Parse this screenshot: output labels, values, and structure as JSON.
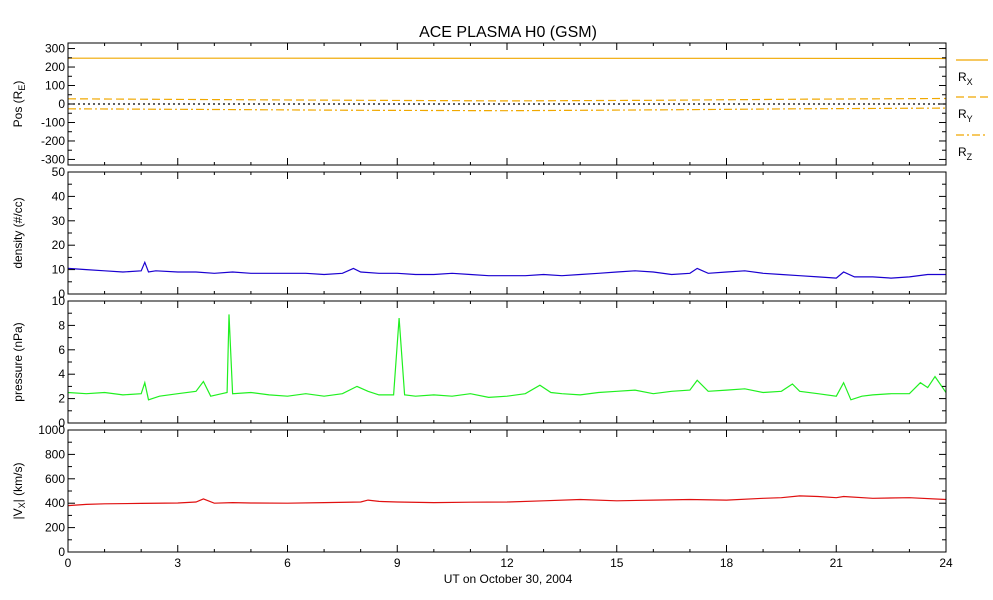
{
  "title": "ACE PLASMA H0 (GSM)",
  "xlabel": "UT on October 30, 2004",
  "x_ticks": [
    0,
    3,
    6,
    9,
    12,
    15,
    18,
    21,
    24
  ],
  "xlim": [
    0,
    24
  ],
  "chart_data": [
    {
      "type": "line",
      "ylabel": "Pos (R",
      "ylabel_sub": "E",
      "ylabel_end": ")",
      "ylim": [
        -330,
        330
      ],
      "y_ticks": [
        300,
        200,
        100,
        0,
        -100,
        -200,
        -300
      ],
      "series": [
        {
          "name": "R",
          "sub": "X",
          "style": "solid",
          "color": "#f0a800",
          "x": [
            0,
            6,
            12,
            18,
            24
          ],
          "y": [
            248,
            248,
            247,
            247,
            246
          ]
        },
        {
          "name": "R",
          "sub": "Y",
          "style": "dashed",
          "color": "#f0a800",
          "x": [
            0,
            4,
            8,
            12,
            16,
            20,
            24
          ],
          "y": [
            28,
            24,
            20,
            17,
            20,
            26,
            30
          ]
        },
        {
          "name": "R",
          "sub": "Z",
          "style": "dashdot",
          "color": "#f0a800",
          "x": [
            0,
            4,
            8,
            12,
            16,
            20,
            24
          ],
          "y": [
            -26,
            -30,
            -34,
            -36,
            -32,
            -26,
            -22
          ]
        },
        {
          "name": "",
          "style": "dotted",
          "color": "#000000",
          "x": [
            0,
            24
          ],
          "y": [
            0,
            0
          ]
        }
      ]
    },
    {
      "type": "line",
      "ylabel": "density (#/cc)",
      "ylim": [
        0,
        50
      ],
      "y_ticks": [
        50,
        40,
        30,
        20,
        10,
        0
      ],
      "series": [
        {
          "name": "density",
          "color": "#1a00d0",
          "x": [
            0,
            0.5,
            1,
            1.5,
            2,
            2.1,
            2.2,
            2.4,
            3,
            3.5,
            4,
            4.5,
            5,
            5.5,
            6,
            6.5,
            7,
            7.5,
            7.8,
            8,
            8.5,
            9,
            9.5,
            10,
            10.5,
            11,
            11.5,
            12,
            12.5,
            13,
            13.5,
            14,
            14.5,
            15,
            15.5,
            16,
            16.5,
            17,
            17.2,
            17.5,
            18,
            18.5,
            19,
            19.5,
            20,
            20.5,
            21,
            21.2,
            21.5,
            22,
            22.5,
            23,
            23.5,
            24
          ],
          "y": [
            10.5,
            10,
            9.5,
            9,
            9.5,
            13,
            9,
            9.5,
            9,
            9,
            8.5,
            9,
            8.5,
            8.5,
            8.5,
            8.5,
            8,
            8.5,
            10.5,
            9,
            8.5,
            8.5,
            8,
            8,
            8.5,
            8,
            7.5,
            7.5,
            7.5,
            8,
            7.5,
            8,
            8.5,
            9,
            9.5,
            9,
            8,
            8.5,
            10.5,
            8.5,
            9,
            9.5,
            8.5,
            8,
            7.5,
            7,
            6.5,
            9,
            7,
            7,
            6.5,
            7,
            8,
            8
          ]
        }
      ]
    },
    {
      "type": "line",
      "ylabel": "pressure (nPa)",
      "ylim": [
        0,
        10
      ],
      "y_ticks": [
        10,
        8,
        6,
        4,
        2,
        0
      ],
      "series": [
        {
          "name": "pressure",
          "color": "#20f020",
          "x": [
            0,
            0.5,
            1,
            1.5,
            2,
            2.1,
            2.2,
            2.5,
            3,
            3.5,
            3.7,
            3.9,
            4.2,
            4.35,
            4.4,
            4.5,
            5,
            5.5,
            6,
            6.5,
            7,
            7.5,
            7.9,
            8.2,
            8.5,
            8.9,
            9.05,
            9.2,
            9.5,
            10,
            10.5,
            11,
            11.5,
            12,
            12.5,
            12.9,
            13.2,
            13.5,
            14,
            14.5,
            15,
            15.5,
            16,
            16.5,
            17,
            17.2,
            17.5,
            18,
            18.5,
            19,
            19.5,
            19.8,
            20,
            20.5,
            21,
            21.2,
            21.4,
            21.7,
            22,
            22.5,
            23,
            23.3,
            23.5,
            23.7,
            24
          ],
          "y": [
            2.5,
            2.4,
            2.5,
            2.3,
            2.4,
            3.3,
            1.9,
            2.2,
            2.4,
            2.6,
            3.4,
            2.2,
            2.4,
            2.5,
            8.9,
            2.4,
            2.5,
            2.3,
            2.2,
            2.4,
            2.2,
            2.4,
            3.0,
            2.6,
            2.3,
            2.3,
            8.6,
            2.3,
            2.2,
            2.3,
            2.2,
            2.4,
            2.1,
            2.2,
            2.4,
            3.1,
            2.5,
            2.4,
            2.3,
            2.5,
            2.6,
            2.7,
            2.4,
            2.6,
            2.7,
            3.5,
            2.6,
            2.7,
            2.8,
            2.5,
            2.6,
            3.2,
            2.6,
            2.4,
            2.2,
            3.3,
            1.9,
            2.2,
            2.3,
            2.4,
            2.4,
            3.3,
            2.9,
            3.8,
            2.5
          ]
        }
      ]
    },
    {
      "type": "line",
      "ylabel": "|V",
      "ylabel_sub": "X",
      "ylabel_end": "| (km/s)",
      "ylim": [
        0,
        1000
      ],
      "y_ticks": [
        1000,
        800,
        600,
        400,
        200,
        0
      ],
      "series": [
        {
          "name": "Vx",
          "color": "#e01010",
          "x": [
            0,
            0.5,
            1,
            2,
            3,
            3.5,
            3.7,
            4,
            4.5,
            5,
            6,
            7,
            8,
            8.2,
            8.5,
            9,
            10,
            11,
            12,
            13,
            14,
            15,
            16,
            17,
            18,
            19,
            19.5,
            20,
            20.5,
            21,
            21.2,
            22,
            23,
            24
          ],
          "y": [
            380,
            390,
            395,
            398,
            402,
            410,
            435,
            400,
            405,
            402,
            400,
            405,
            410,
            425,
            415,
            410,
            405,
            408,
            410,
            420,
            430,
            420,
            425,
            430,
            425,
            440,
            445,
            460,
            455,
            445,
            455,
            440,
            445,
            430
          ]
        }
      ]
    }
  ]
}
